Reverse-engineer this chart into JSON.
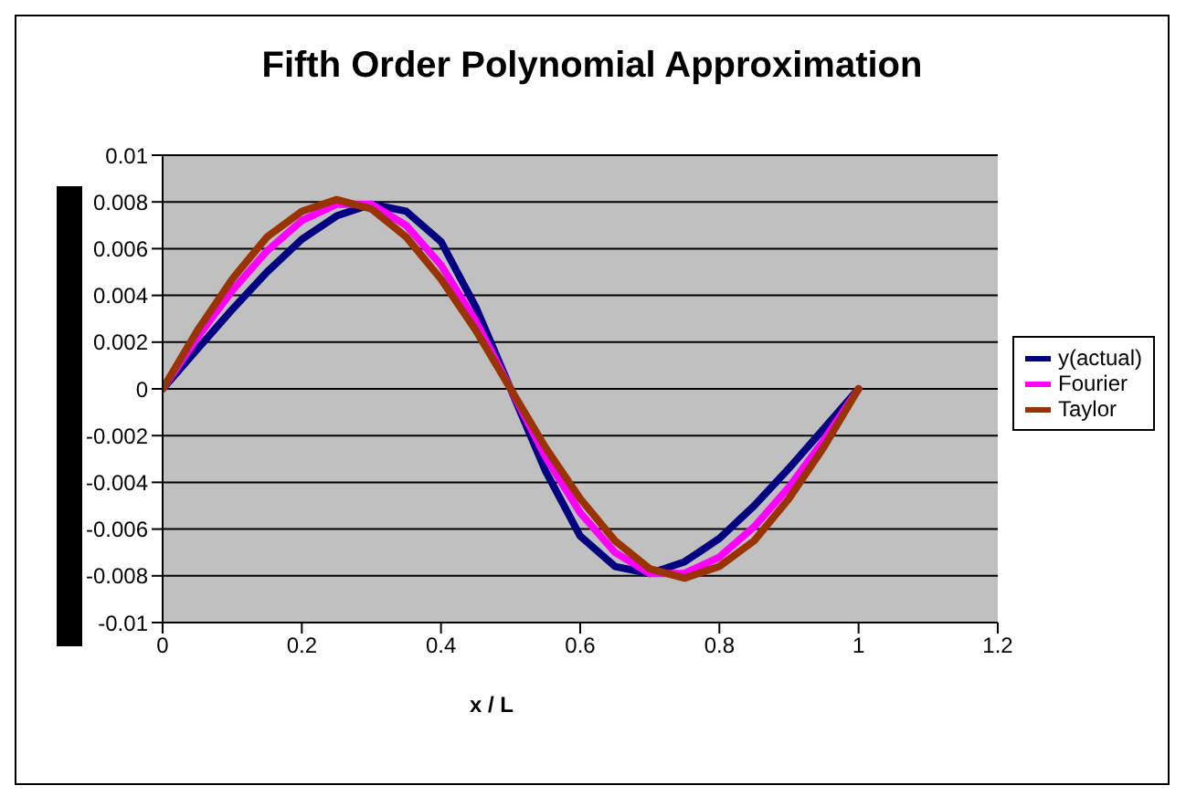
{
  "chart_data": {
    "type": "line",
    "title": "Fifth Order Polynomial Approximation",
    "xlabel": "x / L",
    "x": [
      0,
      0.05,
      0.1,
      0.15,
      0.2,
      0.25,
      0.3,
      0.35,
      0.4,
      0.45,
      0.5,
      0.55,
      0.6,
      0.65,
      0.7,
      0.75,
      0.8,
      0.85,
      0.9,
      0.95,
      1
    ],
    "series": [
      {
        "name": "y(actual)",
        "color": "#000080",
        "values": [
          0,
          0.0017,
          0.0034,
          0.005,
          0.0064,
          0.0074,
          0.0079,
          0.0076,
          0.0063,
          0.0035,
          0,
          -0.0035,
          -0.0063,
          -0.0076,
          -0.0079,
          -0.0074,
          -0.0064,
          -0.005,
          -0.0034,
          -0.0017,
          0
        ]
      },
      {
        "name": "Fourier",
        "color": "#ff00ff",
        "values": [
          0,
          0.0022,
          0.0042,
          0.0059,
          0.0072,
          0.0079,
          0.0079,
          0.007,
          0.0053,
          0.0029,
          0,
          -0.0029,
          -0.0053,
          -0.007,
          -0.0079,
          -0.0079,
          -0.0072,
          -0.0059,
          -0.0042,
          -0.0022,
          0
        ]
      },
      {
        "name": "Taylor",
        "color": "#993300",
        "values": [
          0,
          0.0025,
          0.0047,
          0.0065,
          0.0076,
          0.0081,
          0.0077,
          0.0065,
          0.0047,
          0.0025,
          0,
          -0.0025,
          -0.0047,
          -0.0065,
          -0.0077,
          -0.0081,
          -0.0076,
          -0.0065,
          -0.0047,
          -0.0025,
          0
        ]
      }
    ],
    "xlim": [
      0,
      1.2
    ],
    "xticks": [
      0,
      0.2,
      0.4,
      0.6,
      0.8,
      1,
      1.2
    ],
    "ylim": [
      -0.01,
      0.01
    ],
    "yticks": [
      -0.01,
      -0.008,
      -0.006,
      -0.004,
      -0.002,
      0,
      0.002,
      0.004,
      0.006,
      0.008,
      0.01
    ],
    "grid": "y",
    "legend": "right",
    "marker": "none",
    "line_style": "solid"
  }
}
